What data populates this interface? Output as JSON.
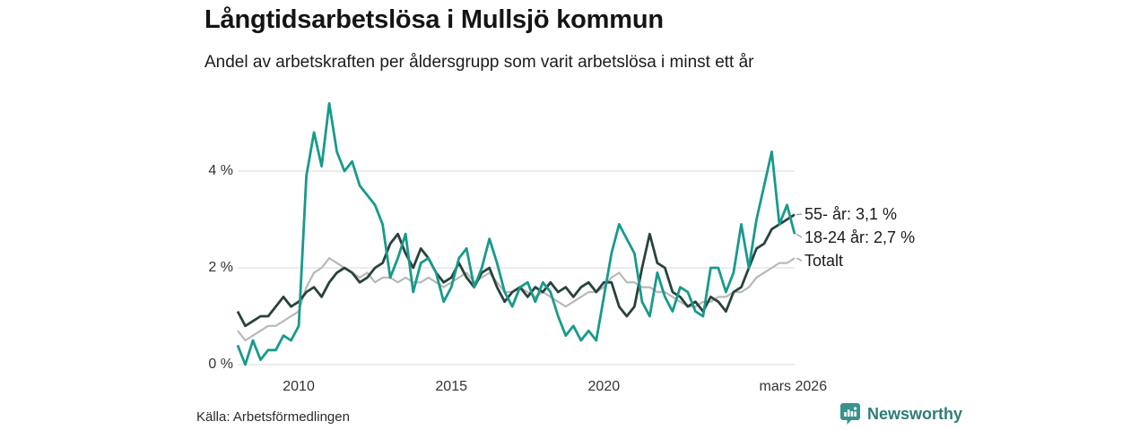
{
  "header": {
    "title": "Långtidsarbetslösa i Mullsjö kommun",
    "subtitle": "Andel av arbetskraften per åldersgrupp som varit arbetslösa i minst ett år"
  },
  "source": {
    "label": "Källa: Arbetsförmedlingen"
  },
  "branding": {
    "name": "Newsworthy",
    "icon": "newsworthy-chart-bubble-icon",
    "text_color": "#2e7d76",
    "icon_color": "#38938b"
  },
  "chart_data": {
    "type": "line",
    "title": "Långtidsarbetslösa i Mullsjö kommun",
    "subtitle": "Andel av arbetskraften per åldersgrupp som varit arbetslösa i minst ett år",
    "xlabel": "",
    "ylabel": "",
    "xlim": [
      2008.0,
      2026.25
    ],
    "ylim": [
      0,
      5.6
    ],
    "grid": "horizontal",
    "grid_color": "#d9d9d9",
    "legend_position": "right-end-labels",
    "yticks": [
      {
        "value": 0,
        "label": "0 %"
      },
      {
        "value": 2,
        "label": "2 %"
      },
      {
        "value": 4,
        "label": "4 %"
      }
    ],
    "xticks": [
      {
        "value": 2010,
        "label": "2010"
      },
      {
        "value": 2015,
        "label": "2015"
      },
      {
        "value": 2020,
        "label": "2020"
      },
      {
        "value": 2026.2,
        "label": "mars 2026"
      }
    ],
    "x": [
      2008.0,
      2008.25,
      2008.5,
      2008.75,
      2009.0,
      2009.25,
      2009.5,
      2009.75,
      2010.0,
      2010.25,
      2010.5,
      2010.75,
      2011.0,
      2011.25,
      2011.5,
      2011.75,
      2012.0,
      2012.25,
      2012.5,
      2012.75,
      2013.0,
      2013.25,
      2013.5,
      2013.75,
      2014.0,
      2014.25,
      2014.5,
      2014.75,
      2015.0,
      2015.25,
      2015.5,
      2015.75,
      2016.0,
      2016.25,
      2016.5,
      2016.75,
      2017.0,
      2017.25,
      2017.5,
      2017.75,
      2018.0,
      2018.25,
      2018.5,
      2018.75,
      2019.0,
      2019.25,
      2019.5,
      2019.75,
      2020.0,
      2020.25,
      2020.5,
      2020.75,
      2021.0,
      2021.25,
      2021.5,
      2021.75,
      2022.0,
      2022.25,
      2022.5,
      2022.75,
      2023.0,
      2023.25,
      2023.5,
      2023.75,
      2024.0,
      2024.25,
      2024.5,
      2024.75,
      2025.0,
      2025.25,
      2025.5,
      2025.75,
      2026.0,
      2026.25
    ],
    "series": [
      {
        "name": "55- år",
        "end_label": "55- år: 3,1 %",
        "last_value": 3.1,
        "color": "#29423e",
        "stroke_width": 2.8,
        "values": [
          1.1,
          0.8,
          0.9,
          1.0,
          1.0,
          1.2,
          1.4,
          1.2,
          1.3,
          1.5,
          1.6,
          1.4,
          1.7,
          1.9,
          2.0,
          1.9,
          1.7,
          1.8,
          2.0,
          2.1,
          2.5,
          2.7,
          2.3,
          2.0,
          2.4,
          2.2,
          1.9,
          1.7,
          1.8,
          2.1,
          1.8,
          1.6,
          1.9,
          2.0,
          1.6,
          1.3,
          1.5,
          1.6,
          1.4,
          1.6,
          1.5,
          1.7,
          1.5,
          1.6,
          1.4,
          1.6,
          1.7,
          1.5,
          1.7,
          1.7,
          1.2,
          1.0,
          1.2,
          2.0,
          2.7,
          2.1,
          2.0,
          1.5,
          1.4,
          1.2,
          1.3,
          1.1,
          1.4,
          1.3,
          1.1,
          1.5,
          1.6,
          2.0,
          2.4,
          2.5,
          2.8,
          2.9,
          3.0,
          3.1
        ]
      },
      {
        "name": "18-24 år",
        "end_label": "18-24 år: 2,7 %",
        "last_value": 2.7,
        "color": "#189a8b",
        "stroke_width": 2.8,
        "values": [
          0.4,
          0.0,
          0.5,
          0.1,
          0.3,
          0.3,
          0.6,
          0.5,
          0.8,
          3.9,
          4.8,
          4.1,
          5.4,
          4.4,
          4.0,
          4.2,
          3.7,
          3.5,
          3.3,
          2.9,
          1.8,
          2.2,
          2.7,
          1.5,
          2.1,
          2.2,
          1.9,
          1.3,
          1.6,
          2.2,
          2.4,
          1.6,
          2.0,
          2.6,
          2.1,
          1.5,
          1.2,
          1.6,
          1.7,
          1.3,
          1.7,
          1.5,
          1.0,
          0.6,
          0.8,
          0.5,
          0.7,
          0.5,
          1.4,
          2.3,
          2.9,
          2.6,
          2.3,
          1.3,
          1.0,
          1.9,
          1.4,
          1.1,
          1.6,
          1.5,
          1.1,
          1.0,
          2.0,
          2.0,
          1.5,
          1.9,
          2.9,
          2.0,
          3.0,
          3.7,
          4.4,
          2.9,
          3.3,
          2.7
        ]
      },
      {
        "name": "Totalt",
        "end_label": "Totalt",
        "last_value": 2.2,
        "color": "#b8b8b8",
        "stroke_width": 2.2,
        "values": [
          0.7,
          0.5,
          0.6,
          0.7,
          0.8,
          0.8,
          0.9,
          1.0,
          1.1,
          1.6,
          1.9,
          2.0,
          2.2,
          2.1,
          2.0,
          1.9,
          1.8,
          1.9,
          1.7,
          1.8,
          1.8,
          1.7,
          1.8,
          1.7,
          1.7,
          1.8,
          1.7,
          1.6,
          1.7,
          1.8,
          1.9,
          1.7,
          1.8,
          1.9,
          1.7,
          1.5,
          1.5,
          1.6,
          1.5,
          1.4,
          1.5,
          1.4,
          1.3,
          1.2,
          1.3,
          1.4,
          1.5,
          1.5,
          1.6,
          1.8,
          1.9,
          1.7,
          1.7,
          1.6,
          1.6,
          1.5,
          1.5,
          1.4,
          1.3,
          1.2,
          1.2,
          1.3,
          1.3,
          1.4,
          1.4,
          1.5,
          1.5,
          1.6,
          1.8,
          1.9,
          2.0,
          2.1,
          2.1,
          2.2
        ]
      }
    ]
  }
}
